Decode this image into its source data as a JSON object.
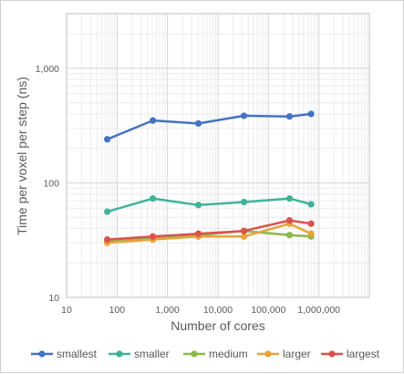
{
  "chart_data": {
    "type": "line",
    "title": "",
    "xlabel": "Number of cores",
    "ylabel": "Time per voxel per step (ns)",
    "x_scale": "log",
    "y_scale": "log",
    "xlim": [
      10,
      10000000
    ],
    "ylim": [
      10,
      3000
    ],
    "x_tick_labels": [
      "10",
      "100",
      "1,000",
      "10,000",
      "100,000",
      "1,000,000"
    ],
    "y_tick_labels": [
      "10",
      "100",
      "1,000"
    ],
    "grid": true,
    "legend_position": "bottom",
    "series": [
      {
        "name": "smallest",
        "color": "#4472c4",
        "x": [
          64,
          512,
          4096,
          32768,
          262144,
          700000
        ],
        "y": [
          240,
          350,
          330,
          385,
          380,
          400
        ]
      },
      {
        "name": "smaller",
        "color": "#3fb39a",
        "x": [
          64,
          512,
          4096,
          32768,
          262144,
          700000
        ],
        "y": [
          56,
          73,
          64,
          68,
          73,
          65
        ]
      },
      {
        "name": "medium",
        "color": "#8cb84a",
        "x": [
          64,
          512,
          4096,
          32768,
          262144,
          700000
        ],
        "y": [
          31,
          33,
          35,
          38,
          35,
          34
        ]
      },
      {
        "name": "larger",
        "color": "#e8a33a",
        "x": [
          64,
          512,
          4096,
          32768,
          262144,
          700000
        ],
        "y": [
          30,
          32,
          34,
          34,
          44,
          36
        ]
      },
      {
        "name": "largest",
        "color": "#d9534f",
        "x": [
          64,
          512,
          4096,
          32768,
          262144,
          700000
        ],
        "y": [
          32,
          34,
          36,
          38,
          47,
          44
        ]
      }
    ]
  }
}
